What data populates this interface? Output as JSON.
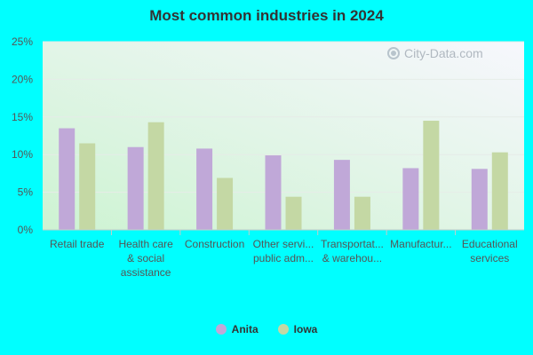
{
  "chart_data": {
    "type": "bar",
    "title": "Most common industries in 2024",
    "categories": [
      [
        "Retail trade"
      ],
      [
        "Health care",
        "& social",
        "assistance"
      ],
      [
        "Construction"
      ],
      [
        "Other servi...",
        "public adm..."
      ],
      [
        "Transportat...",
        "& warehou..."
      ],
      [
        "Manufactur..."
      ],
      [
        "Educational",
        "services"
      ]
    ],
    "series": [
      {
        "name": "Anita",
        "color": "#c0a8d8",
        "values": [
          13.5,
          11.0,
          10.8,
          9.9,
          9.3,
          8.2,
          8.1
        ]
      },
      {
        "name": "Iowa",
        "color": "#c4d8a4",
        "values": [
          11.5,
          14.3,
          6.9,
          4.4,
          4.4,
          14.5,
          10.3
        ]
      }
    ],
    "ylim": [
      0,
      25
    ],
    "yticks": [
      0,
      5,
      10,
      15,
      20,
      25
    ],
    "ytick_labels": [
      "0%",
      "5%",
      "10%",
      "15%",
      "20%",
      "25%"
    ],
    "grid": true,
    "legend_position": "bottom"
  },
  "watermark": "City-Data.com"
}
